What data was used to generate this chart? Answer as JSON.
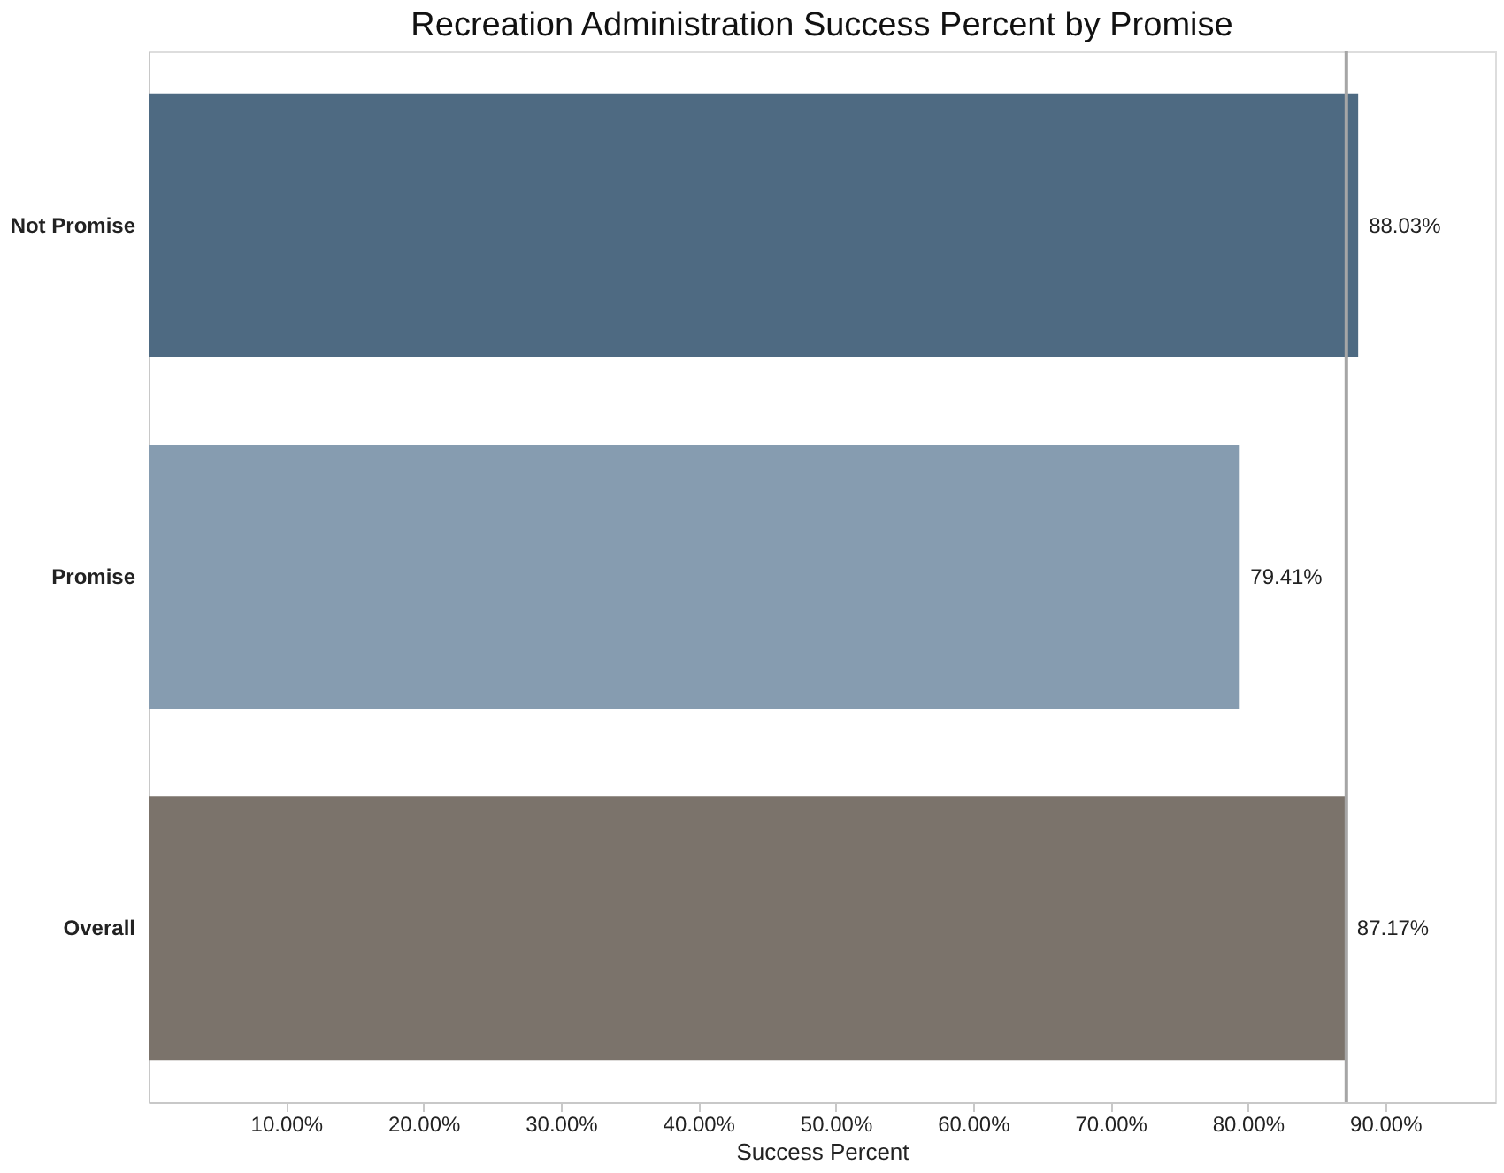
{
  "chart_data": {
    "type": "bar",
    "orientation": "horizontal",
    "title": "Recreation Administration Success Percent by Promise",
    "xlabel": "Success Percent",
    "categories": [
      "Not Promise",
      "Promise",
      "Overall"
    ],
    "values": [
      88.03,
      79.41,
      87.17
    ],
    "colors": [
      "#4e6a82",
      "#869cb0",
      "#7b736b"
    ],
    "value_labels": [
      "88.03%",
      "79.41%",
      "87.17%"
    ],
    "xlim": [
      0,
      98
    ],
    "xticks": [
      {
        "value": 10,
        "label": "10.00%"
      },
      {
        "value": 20,
        "label": "20.00%"
      },
      {
        "value": 30,
        "label": "30.00%"
      },
      {
        "value": 40,
        "label": "40.00%"
      },
      {
        "value": 50,
        "label": "50.00%"
      },
      {
        "value": 60,
        "label": "60.00%"
      },
      {
        "value": 70,
        "label": "70.00%"
      },
      {
        "value": 80,
        "label": "80.00%"
      },
      {
        "value": 90,
        "label": "90.00%"
      }
    ],
    "ref_lines": [
      {
        "axis": "x",
        "value": 87.17,
        "color": "#a6a6a6"
      }
    ]
  }
}
